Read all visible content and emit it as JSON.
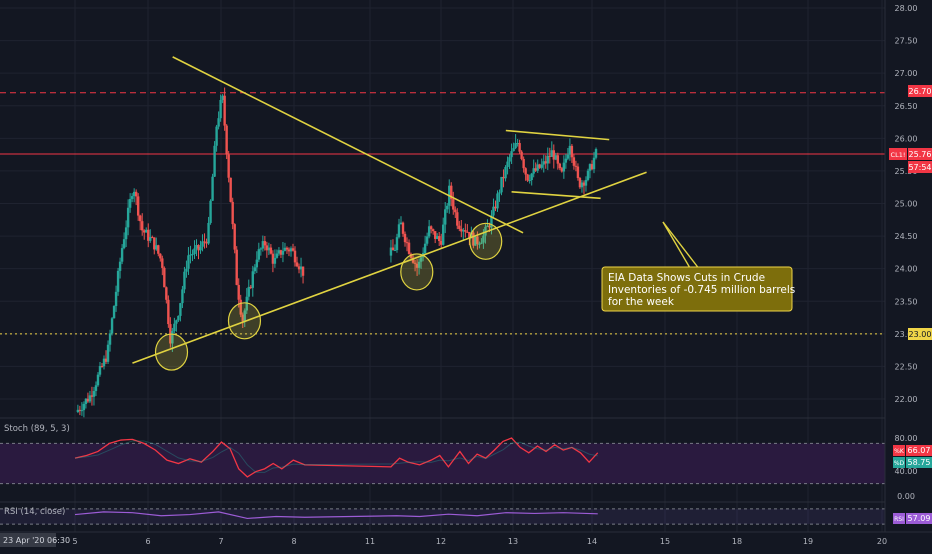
{
  "colors": {
    "background": "#131722",
    "grid": "#1f2330",
    "axis_text": "#b2b5be",
    "candle_up": "#26a69a",
    "candle_down": "#ef5350",
    "trendline": "#e0d341",
    "price_line": "#f23645",
    "level_line": "#f0d548",
    "stoch_k": "#f23645",
    "stoch_d": "#26a69a",
    "stoch_fill": "#2a1a3f",
    "rsi": "#9c5cd6",
    "annotation_bg": "#7d6e0c",
    "annotation_border": "#f0d548"
  },
  "annotation": {
    "lines": [
      "EIA Data Shows Cuts in Crude",
      "Inventories of -0.745 million barrels",
      "for the week"
    ]
  },
  "price_badges": {
    "resistance": "26.70",
    "support": "23.00",
    "symbol": "CL1!",
    "last": "25.76",
    "countdown": "57:54"
  },
  "stoch": {
    "label": "Stoch (89, 5, 3)",
    "k_tag": "%K",
    "k_value": "66.07",
    "d_tag": "%D",
    "d_value": "58.75"
  },
  "rsi": {
    "label": "RSI (14, close)",
    "tag": "RSI",
    "value": "57.09"
  },
  "time_axis": {
    "start_label": "23 Apr '20  06:30"
  },
  "chart_data": {
    "type": "candlestick",
    "instrument": "CL1!",
    "ylim": [
      21.75,
      28.1
    ],
    "y_ticks": [
      "22.00",
      "22.50",
      "23.00",
      "23.50",
      "24.00",
      "24.50",
      "25.00",
      "25.50",
      "26.00",
      "26.50",
      "27.00",
      "27.50",
      "28.00"
    ],
    "x_ticks": [
      "5",
      "6",
      "7",
      "8",
      "11",
      "12",
      "13",
      "14",
      "15",
      "18",
      "19",
      "20"
    ],
    "horizontal_levels": [
      {
        "value": 26.7,
        "style": "dashed",
        "color": "#f23645"
      },
      {
        "value": 25.76,
        "style": "solid",
        "color": "#f23645"
      },
      {
        "value": 23.0,
        "style": "dotted",
        "color": "#f0d548"
      }
    ],
    "trendlines": [
      {
        "name": "rising-support",
        "from": {
          "x": 6.0,
          "y": 22.55
        },
        "to": {
          "x": 14.95,
          "y": 25.48
        }
      },
      {
        "name": "falling-resistance",
        "from": {
          "x": 6.7,
          "y": 27.25
        },
        "to": {
          "x": 12.8,
          "y": 24.55
        }
      },
      {
        "name": "channel-top",
        "from": {
          "x": 12.5,
          "y": 26.12
        },
        "to": {
          "x": 14.3,
          "y": 25.98
        }
      },
      {
        "name": "channel-bottom",
        "from": {
          "x": 12.6,
          "y": 25.18
        },
        "to": {
          "x": 14.15,
          "y": 25.08
        }
      }
    ],
    "highlighted_lows": [
      {
        "x": 6.68,
        "y": 22.72
      },
      {
        "x": 7.95,
        "y": 23.2
      },
      {
        "x": 10.95,
        "y": 23.95
      },
      {
        "x": 12.15,
        "y": 24.42
      }
    ],
    "price_path": [
      [
        5.05,
        21.8
      ],
      [
        5.3,
        22.05
      ],
      [
        5.6,
        22.7
      ],
      [
        5.85,
        24.3
      ],
      [
        6.05,
        25.3
      ],
      [
        6.2,
        24.6
      ],
      [
        6.4,
        24.4
      ],
      [
        6.55,
        24.1
      ],
      [
        6.7,
        22.9
      ],
      [
        6.85,
        23.4
      ],
      [
        7.0,
        24.2
      ],
      [
        7.2,
        24.3
      ],
      [
        7.35,
        24.5
      ],
      [
        7.5,
        26.2
      ],
      [
        7.6,
        26.65
      ],
      [
        7.75,
        25.0
      ],
      [
        7.85,
        23.8
      ],
      [
        7.95,
        23.2
      ],
      [
        8.05,
        23.6
      ],
      [
        8.2,
        24.2
      ],
      [
        8.35,
        24.4
      ],
      [
        8.5,
        24.1
      ],
      [
        8.65,
        24.3
      ],
      [
        8.8,
        24.3
      ],
      [
        9.0,
        23.95
      ],
      [
        10.5,
        24.2
      ],
      [
        10.6,
        24.3
      ],
      [
        10.7,
        24.7
      ],
      [
        10.85,
        24.3
      ],
      [
        11.0,
        24.0
      ],
      [
        11.2,
        24.6
      ],
      [
        11.4,
        24.4
      ],
      [
        11.55,
        25.2
      ],
      [
        11.7,
        24.7
      ],
      [
        11.85,
        24.6
      ],
      [
        12.0,
        24.4
      ],
      [
        12.15,
        24.5
      ],
      [
        12.3,
        24.8
      ],
      [
        12.45,
        25.3
      ],
      [
        12.6,
        25.7
      ],
      [
        12.75,
        25.95
      ],
      [
        12.9,
        25.4
      ],
      [
        13.05,
        25.5
      ],
      [
        13.2,
        25.6
      ],
      [
        13.35,
        25.8
      ],
      [
        13.5,
        25.4
      ],
      [
        13.65,
        25.95
      ],
      [
        13.8,
        25.3
      ],
      [
        13.95,
        25.4
      ],
      [
        14.1,
        25.76
      ]
    ],
    "stoch_k": [
      [
        5.0,
        58
      ],
      [
        5.2,
        62
      ],
      [
        5.4,
        68
      ],
      [
        5.6,
        80
      ],
      [
        5.8,
        85
      ],
      [
        6.0,
        86
      ],
      [
        6.2,
        80
      ],
      [
        6.4,
        70
      ],
      [
        6.6,
        55
      ],
      [
        6.8,
        50
      ],
      [
        7.0,
        57
      ],
      [
        7.2,
        52
      ],
      [
        7.4,
        68
      ],
      [
        7.55,
        82
      ],
      [
        7.7,
        72
      ],
      [
        7.85,
        42
      ],
      [
        8.0,
        30
      ],
      [
        8.15,
        38
      ],
      [
        8.3,
        42
      ],
      [
        8.45,
        50
      ],
      [
        8.6,
        42
      ],
      [
        8.8,
        55
      ],
      [
        9.0,
        48
      ],
      [
        10.5,
        45
      ],
      [
        10.65,
        58
      ],
      [
        10.8,
        52
      ],
      [
        11.0,
        48
      ],
      [
        11.2,
        55
      ],
      [
        11.35,
        62
      ],
      [
        11.5,
        45
      ],
      [
        11.7,
        68
      ],
      [
        11.85,
        50
      ],
      [
        12.0,
        64
      ],
      [
        12.15,
        58
      ],
      [
        12.3,
        70
      ],
      [
        12.45,
        83
      ],
      [
        12.6,
        88
      ],
      [
        12.75,
        74
      ],
      [
        12.9,
        66
      ],
      [
        13.05,
        76
      ],
      [
        13.2,
        68
      ],
      [
        13.35,
        78
      ],
      [
        13.5,
        70
      ],
      [
        13.65,
        74
      ],
      [
        13.8,
        66
      ],
      [
        13.95,
        52
      ],
      [
        14.1,
        66
      ]
    ],
    "stoch_ylim": [
      0,
      100
    ],
    "stoch_levels": [
      80,
      20
    ],
    "rsi_values": [
      [
        5.0,
        55
      ],
      [
        5.5,
        62
      ],
      [
        6.0,
        60
      ],
      [
        6.5,
        52
      ],
      [
        7.0,
        55
      ],
      [
        7.5,
        62
      ],
      [
        8.0,
        45
      ],
      [
        8.5,
        50
      ],
      [
        9.0,
        48
      ],
      [
        10.6,
        52
      ],
      [
        11.0,
        50
      ],
      [
        11.5,
        56
      ],
      [
        12.0,
        52
      ],
      [
        12.5,
        60
      ],
      [
        13.0,
        58
      ],
      [
        13.5,
        60
      ],
      [
        14.1,
        57
      ]
    ],
    "rsi_ylim": [
      20,
      80
    ],
    "rsi_levels": [
      70,
      30
    ]
  }
}
